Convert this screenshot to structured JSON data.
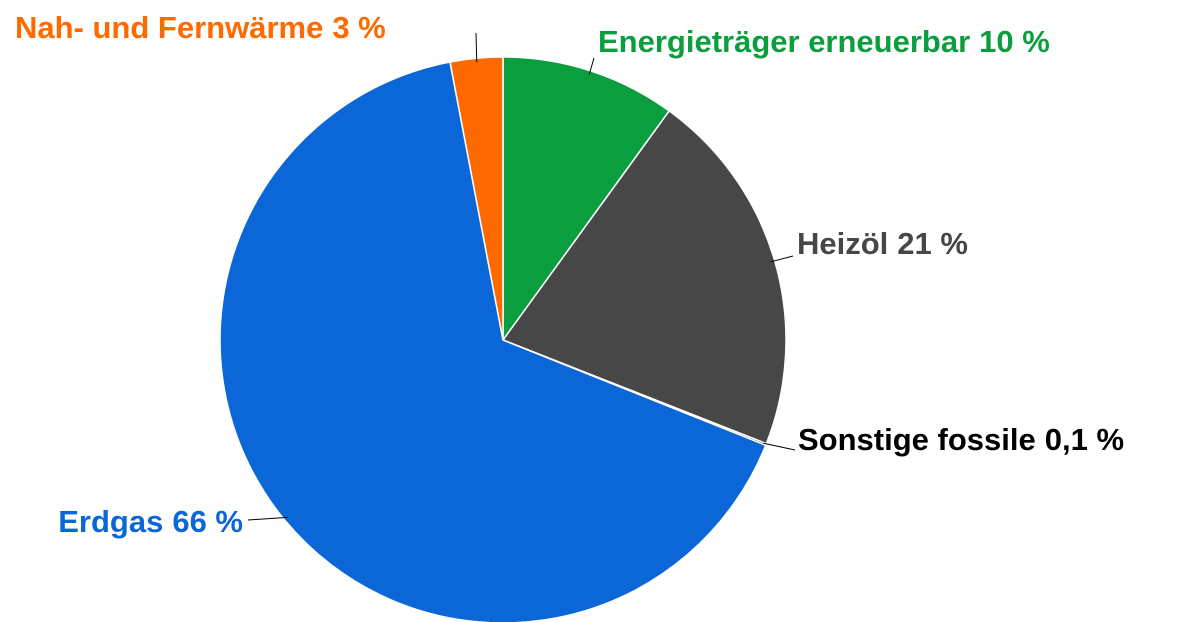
{
  "chart_data": {
    "type": "pie",
    "categories": [
      "Energieträger erneuerbar",
      "Heizöl",
      "Sonstige fossile",
      "Erdgas",
      "Nah- und Fernwärme"
    ],
    "values": [
      10,
      21,
      0.1,
      66,
      3
    ],
    "value_labels": [
      "10 %",
      "21 %",
      "0,1 %",
      "66 %",
      "3 %"
    ],
    "colors": [
      "#0a9e3f",
      "#474747",
      "#111111",
      "#0b67d8",
      "#ff6a00"
    ],
    "label_colors": [
      "#0a9e3f",
      "#474747",
      "#000000",
      "#0b67d8",
      "#ff6a00"
    ]
  }
}
